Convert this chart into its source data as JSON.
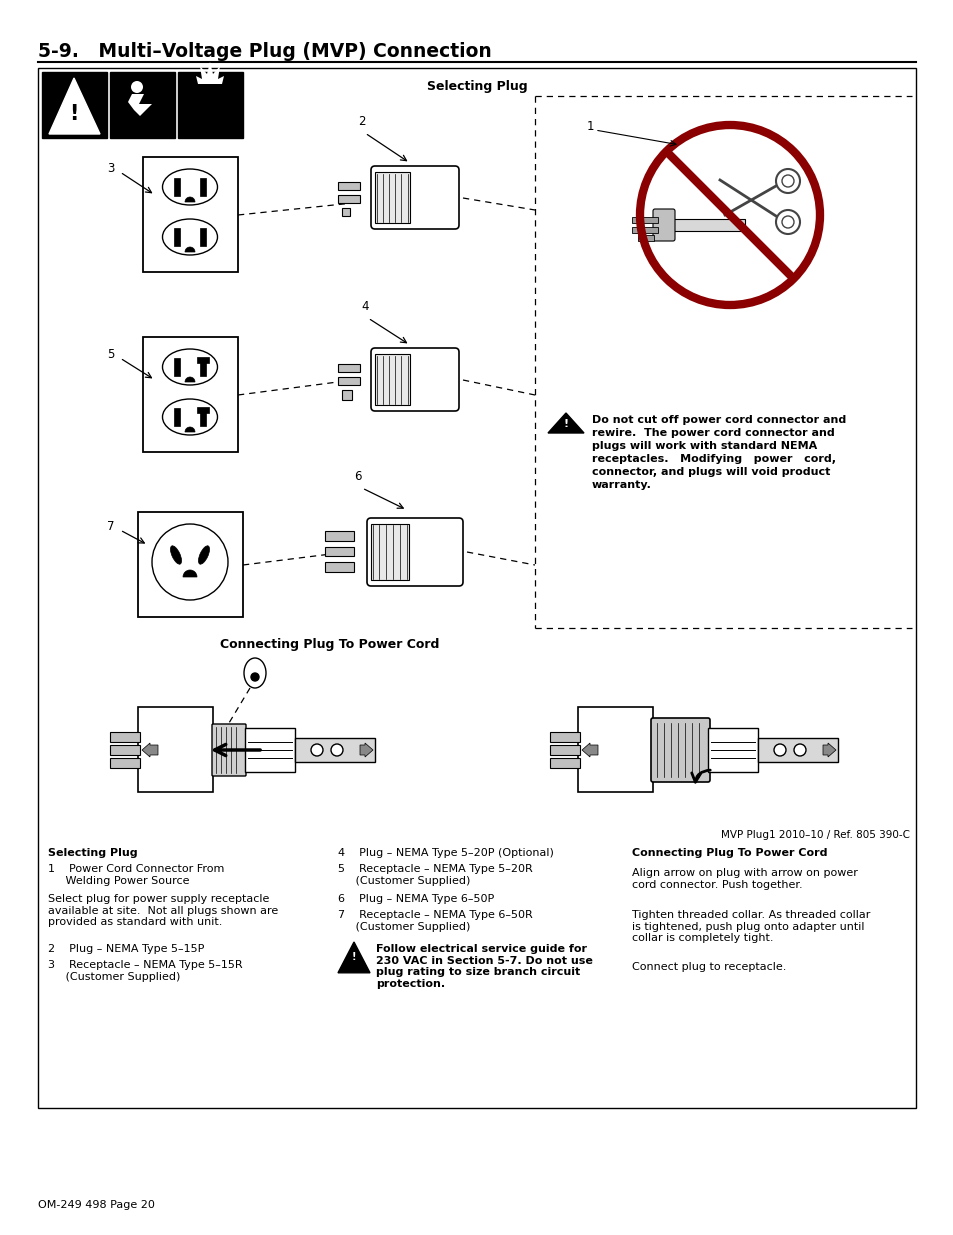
{
  "page_title": "5-9.   Multi–Voltage Plug (MVP) Connection",
  "page_number": "OM-249 498 Page 20",
  "ref_text": "MVP Plug1 2010–10 / Ref. 805 390-C",
  "bg_color": "#ffffff",
  "selecting_plug_label": "Selecting Plug",
  "connecting_plug_label": "Connecting Plug To Power Cord",
  "warning_text_lines": [
    "Do not cut off power cord connector and",
    "rewire.  The power cord connector and",
    "plugs will work with standard NEMA",
    "receptacles.   Modifying   power   cord,",
    "connector, and plugs will void product",
    "warranty."
  ],
  "col1_header": "Selecting Plug",
  "col1_item1": "1    Power Cord Connector From\n     Welding Power Source",
  "col1_body": "Select plug for power supply receptacle\navailable at site.  Not all plugs shown are\nprovided as standard with unit.",
  "col1_item2": "2    Plug – NEMA Type 5–15P",
  "col1_item3": "3    Receptacle – NEMA Type 5–15R\n     (Customer Supplied)",
  "col2_item4": "4    Plug – NEMA Type 5–20P (Optional)",
  "col2_item5": "5    Receptacle – NEMA Type 5–20R\n     (Customer Supplied)",
  "col2_item6": "6    Plug – NEMA Type 6–50P",
  "col2_item7": "7    Receptacle – NEMA Type 6–50R\n     (Customer Supplied)",
  "col2_warning": "Follow electrical service guide for\n230 VAC in Section 5-7. Do not use\nplug rating to size branch circuit\nprotection.",
  "col3_header": "Connecting Plug To Power Cord",
  "col3_para1": "Align arrow on plug with arrow on power\ncord connector. Push together.",
  "col3_para2": "Tighten threaded collar. As threaded collar\nis tightened, push plug onto adapter until\ncollar is completely tight.",
  "col3_para3": "Connect plug to receptacle.",
  "label_1": "1",
  "label_2": "2",
  "label_3": "3",
  "label_4": "4",
  "label_5": "5",
  "label_6": "6",
  "label_7": "7"
}
